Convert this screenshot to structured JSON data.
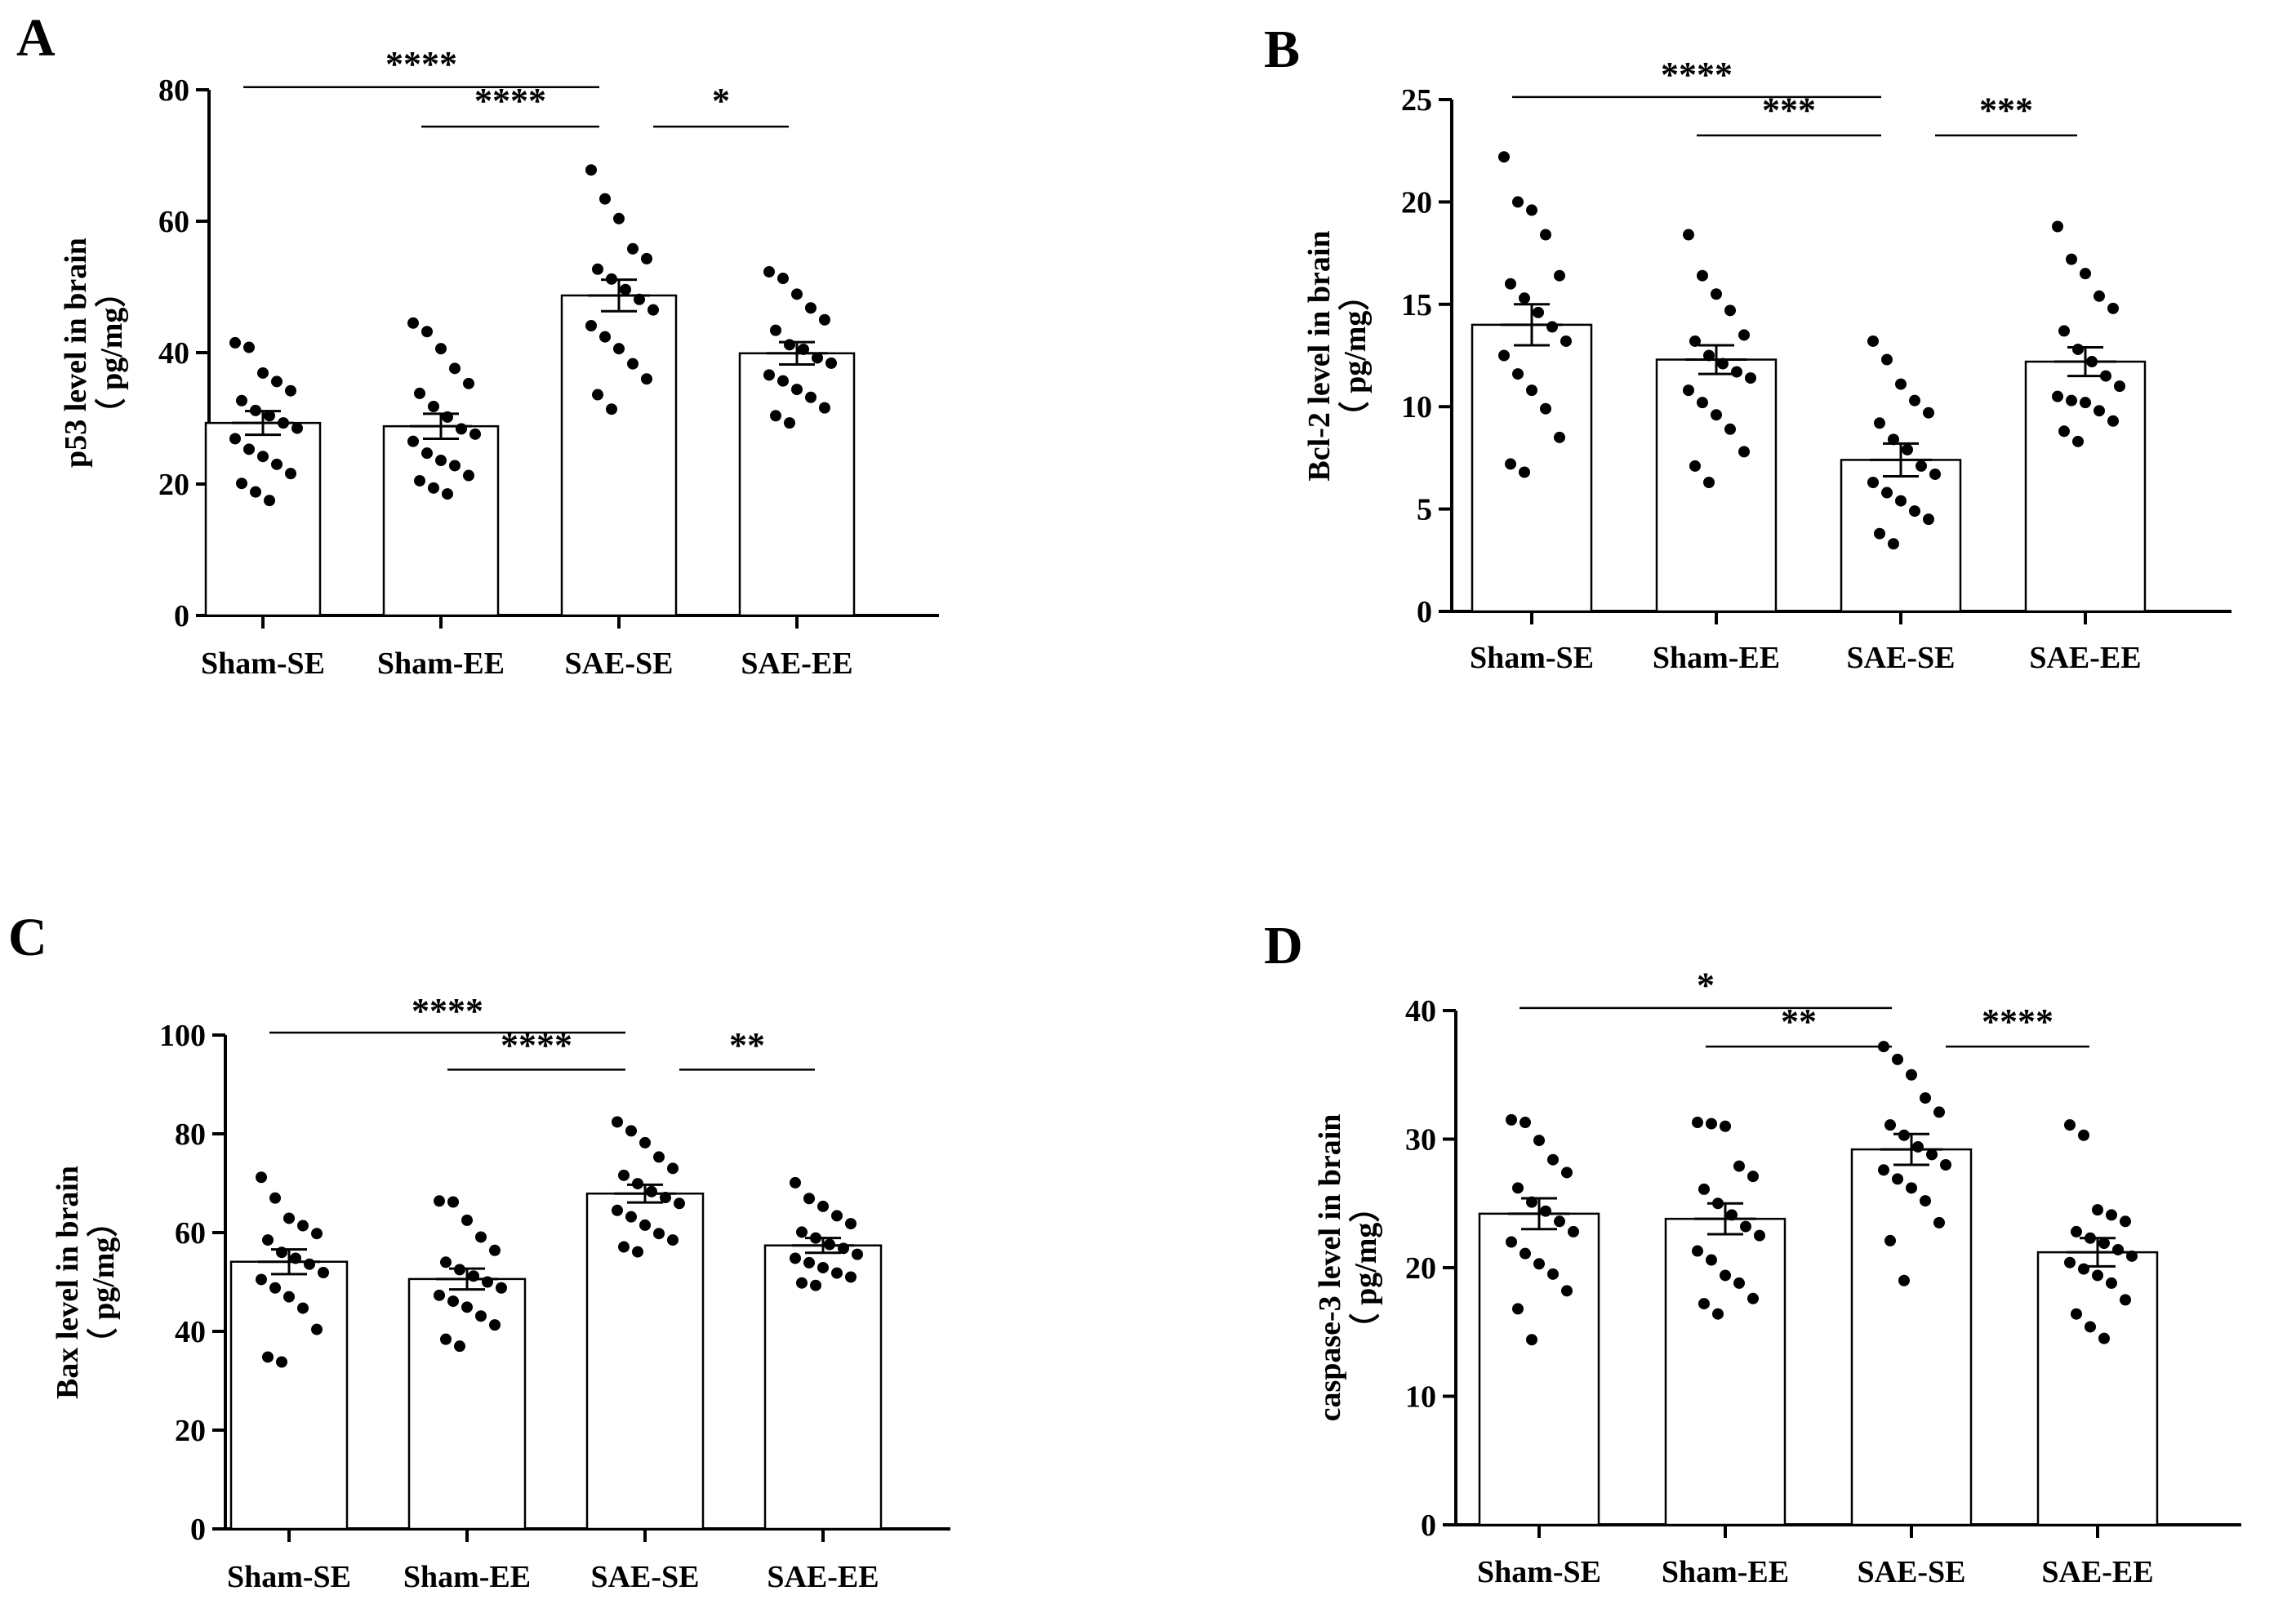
{
  "chart_data": [
    {
      "type": "bar",
      "panel": "A",
      "ylabel": "p53 level in brain",
      "ylabel_unit": "（ pg/mg）",
      "categories": [
        "Sham-SE",
        "Sham-EE",
        "SAE-SE",
        "SAE-EE"
      ],
      "values": [
        29.3,
        28.8,
        48.7,
        39.9
      ],
      "sem": [
        1.8,
        1.9,
        2.4,
        1.7
      ],
      "points": [
        [
          41.5,
          40.8,
          36.9,
          35.6,
          34.2,
          32.7,
          31.2,
          30.4,
          29.3,
          28.5,
          26.9,
          25.3,
          24.2,
          23.0,
          21.6,
          20.1,
          18.8,
          17.5
        ],
        [
          44.5,
          43.2,
          40.6,
          37.6,
          35.3,
          33.8,
          31.8,
          30.2,
          28.4,
          27.6,
          26.5,
          24.7,
          23.6,
          22.8,
          21.3,
          20.5,
          19.4,
          18.5
        ],
        [
          67.8,
          63.4,
          60.4,
          55.8,
          54.3,
          52.7,
          51.2,
          49.6,
          48.1,
          46.5,
          44.1,
          42.4,
          40.6,
          38.3,
          36.0,
          33.6,
          31.4
        ],
        [
          52.3,
          51.3,
          48.9,
          46.8,
          45.0,
          43.4,
          41.2,
          40.5,
          39.2,
          38.4,
          36.6,
          35.7,
          34.4,
          33.2,
          31.6,
          30.4,
          29.3
        ]
      ],
      "ylim": [
        0,
        80
      ],
      "yticks": [
        0,
        20,
        40,
        60,
        80
      ],
      "significance": [
        {
          "from": 0,
          "to": 2,
          "label": "****"
        },
        {
          "from": 1,
          "to": 2,
          "label": "****"
        },
        {
          "from": 2,
          "to": 3,
          "label": "*"
        }
      ]
    },
    {
      "type": "bar",
      "panel": "B",
      "ylabel": "Bcl-2 level in brain",
      "ylabel_unit": "（ pg/mg）",
      "categories": [
        "Sham-SE",
        "Sham-EE",
        "SAE-SE",
        "SAE-EE"
      ],
      "values": [
        14.0,
        12.3,
        7.4,
        12.2
      ],
      "sem": [
        1.0,
        0.7,
        0.8,
        0.7
      ],
      "points": [
        [
          22.2,
          20.0,
          19.6,
          18.4,
          16.4,
          16.0,
          15.3,
          14.6,
          13.9,
          13.2,
          12.5,
          11.6,
          10.8,
          9.9,
          8.5,
          7.2,
          6.8
        ],
        [
          18.4,
          16.4,
          15.5,
          14.7,
          13.5,
          13.2,
          12.5,
          12.1,
          11.7,
          11.4,
          10.8,
          10.2,
          9.6,
          8.9,
          7.8,
          7.1,
          6.3
        ],
        [
          13.2,
          12.3,
          11.1,
          10.3,
          9.7,
          9.2,
          8.4,
          7.9,
          7.1,
          6.7,
          6.3,
          5.8,
          5.4,
          4.9,
          4.5,
          3.8,
          3.3
        ],
        [
          18.8,
          17.2,
          16.5,
          15.4,
          14.8,
          13.7,
          12.8,
          12.2,
          11.5,
          11.0,
          10.5,
          10.3,
          10.2,
          9.8,
          9.3,
          8.8,
          8.3
        ]
      ],
      "ylim": [
        0,
        25
      ],
      "yticks": [
        0,
        5,
        10,
        15,
        20,
        25
      ],
      "significance": [
        {
          "from": 0,
          "to": 2,
          "label": "****"
        },
        {
          "from": 1,
          "to": 2,
          "label": "***"
        },
        {
          "from": 2,
          "to": 3,
          "label": "***"
        }
      ]
    },
    {
      "type": "bar",
      "panel": "C",
      "ylabel": "Bax level in brain",
      "ylabel_unit": "（ pg/mg）",
      "categories": [
        "Sham-SE",
        "Sham-EE",
        "SAE-SE",
        "SAE-EE"
      ],
      "values": [
        54.1,
        50.6,
        67.9,
        57.4
      ],
      "sem": [
        2.5,
        2.1,
        1.8,
        1.5
      ],
      "points": [
        [
          71.2,
          67.0,
          62.9,
          61.4,
          59.8,
          58.5,
          56.0,
          54.8,
          53.6,
          51.9,
          50.5,
          48.8,
          47.0,
          44.7,
          40.4,
          34.8,
          33.8
        ],
        [
          66.4,
          66.2,
          62.5,
          59.1,
          56.4,
          54.0,
          52.5,
          51.2,
          50.0,
          48.8,
          47.3,
          46.1,
          44.9,
          43.1,
          41.3,
          38.4,
          37.0
        ],
        [
          82.4,
          80.6,
          78.2,
          75.3,
          73.0,
          71.6,
          69.9,
          68.3,
          67.1,
          65.9,
          64.5,
          63.2,
          61.5,
          59.8,
          58.5,
          57.1,
          56.1
        ],
        [
          70.1,
          66.9,
          65.3,
          63.4,
          61.8,
          60.1,
          58.9,
          57.6,
          56.8,
          55.6,
          54.8,
          53.9,
          52.9,
          51.8,
          51.0,
          49.8,
          49.3
        ]
      ],
      "ylim": [
        0,
        100
      ],
      "yticks": [
        0,
        20,
        40,
        60,
        80,
        100
      ],
      "significance": [
        {
          "from": 0,
          "to": 2,
          "label": "****"
        },
        {
          "from": 1,
          "to": 2,
          "label": "****"
        },
        {
          "from": 2,
          "to": 3,
          "label": "**"
        }
      ]
    },
    {
      "type": "bar",
      "panel": "D",
      "ylabel": "caspase-3 level in brain",
      "ylabel_unit": "（ pg/mg）",
      "categories": [
        "Sham-SE",
        "Sham-EE",
        "SAE-SE",
        "SAE-EE"
      ],
      "values": [
        24.2,
        23.8,
        29.2,
        21.2
      ],
      "sem": [
        1.2,
        1.2,
        1.2,
        1.1
      ],
      "points": [
        [
          31.5,
          31.3,
          29.9,
          28.4,
          27.4,
          26.2,
          25.1,
          24.4,
          23.6,
          22.8,
          22.0,
          21.1,
          20.3,
          19.5,
          18.2,
          16.8,
          14.4
        ],
        [
          31.3,
          31.2,
          31.0,
          27.9,
          27.1,
          26.1,
          25.0,
          24.1,
          23.2,
          22.5,
          21.3,
          20.6,
          19.4,
          18.8,
          17.6,
          17.2,
          16.4
        ],
        [
          37.2,
          36.2,
          35.0,
          33.2,
          32.1,
          31.1,
          30.3,
          29.4,
          28.8,
          28.0,
          27.6,
          26.9,
          26.2,
          25.2,
          23.5,
          22.1,
          19.0
        ],
        [
          31.1,
          30.3,
          24.5,
          24.1,
          23.6,
          22.8,
          22.3,
          21.9,
          21.4,
          20.9,
          20.4,
          19.9,
          19.4,
          18.8,
          17.5,
          16.4,
          15.4,
          14.5
        ]
      ],
      "ylim": [
        0,
        40
      ],
      "yticks": [
        0,
        10,
        20,
        30,
        40
      ],
      "significance": [
        {
          "from": 0,
          "to": 2,
          "label": "*"
        },
        {
          "from": 1,
          "to": 2,
          "label": "**"
        },
        {
          "from": 2,
          "to": 3,
          "label": "****"
        }
      ]
    }
  ]
}
